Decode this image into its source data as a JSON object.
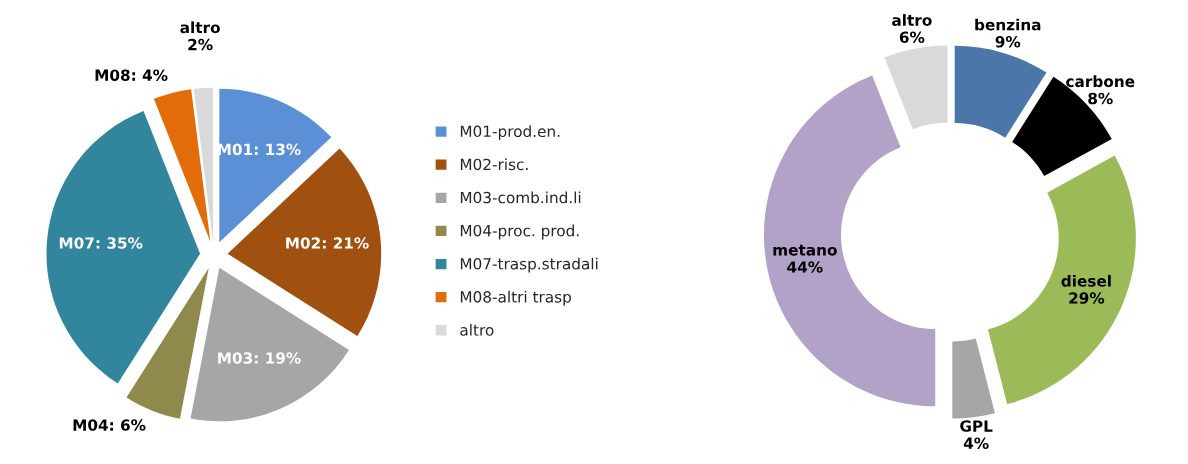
{
  "chart_data": [
    {
      "type": "pie",
      "categories": [
        "M01-prod.en.",
        "M02-risc.",
        "M03-comb.ind.li",
        "M04-proc. prod.",
        "M07-trasp.stradali",
        "M08-altri trasp",
        "altro"
      ],
      "values": [
        13,
        21,
        19,
        6,
        35,
        4,
        2
      ],
      "value_labels": [
        "M01: 13%",
        "M02: 21%",
        "M03: 19%",
        "M04: 6%",
        "M07: 35%",
        "M08: 4%",
        "altro\n2%"
      ],
      "colors": [
        "#5b8fd6",
        "#a0500f",
        "#a6a6a6",
        "#8f8a4c",
        "#31859c",
        "#e36c0a",
        "#d9d9d9"
      ],
      "legend": "right"
    },
    {
      "type": "donut",
      "categories": [
        "benzina",
        "carbone",
        "diesel",
        "GPL",
        "metano",
        "altro"
      ],
      "values": [
        9,
        8,
        29,
        4,
        44,
        6
      ],
      "value_labels": [
        "9%",
        "8%",
        "29%",
        "4%",
        "44%",
        "6%"
      ],
      "colors": [
        "#4a76aa",
        "#000000",
        "#9bbb59",
        "#a6a6a6",
        "#b3a2c7",
        "#d9d9d9"
      ]
    }
  ]
}
